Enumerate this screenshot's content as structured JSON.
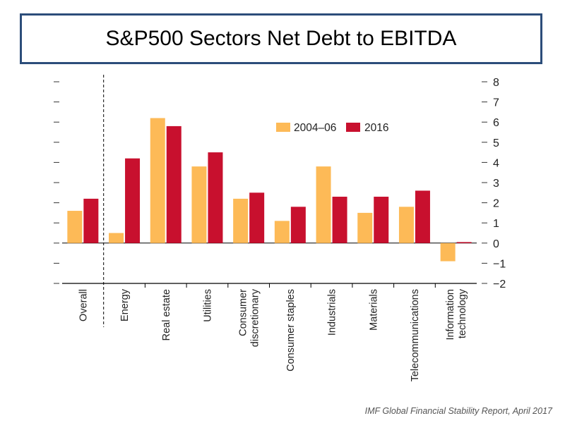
{
  "slide": {
    "title": "S&P500 Sectors Net Debt to EBITDA",
    "source": "IMF Global Financial Stability Report, April 2017"
  },
  "colors": {
    "series_a": "#fdba57",
    "series_b": "#c8102e",
    "title_border": "#2c4d7a"
  },
  "chart_data": {
    "type": "bar",
    "title": "",
    "xlabel": "",
    "ylabel": "",
    "ylim": [
      -2,
      8
    ],
    "yticks": [
      "−2",
      "−1",
      "0",
      "1",
      "2",
      "3",
      "4",
      "5",
      "6",
      "7",
      "8"
    ],
    "categories": [
      [
        "Overall"
      ],
      [
        "Energy"
      ],
      [
        "Real estate"
      ],
      [
        "Utilities"
      ],
      [
        "Consumer",
        "discretionary"
      ],
      [
        "Consumer staples"
      ],
      [
        "Industrials"
      ],
      [
        "Materials"
      ],
      [
        "Telecommunications"
      ],
      [
        "Information",
        "technology"
      ]
    ],
    "series": [
      {
        "name": "2004–06",
        "values": [
          1.6,
          0.5,
          6.2,
          3.8,
          2.2,
          1.1,
          3.8,
          1.5,
          1.8,
          -0.9
        ]
      },
      {
        "name": "2016",
        "values": [
          2.2,
          4.2,
          5.8,
          4.5,
          2.5,
          1.8,
          2.3,
          2.3,
          2.6,
          0.05
        ]
      }
    ],
    "legend_position": "top-right"
  }
}
